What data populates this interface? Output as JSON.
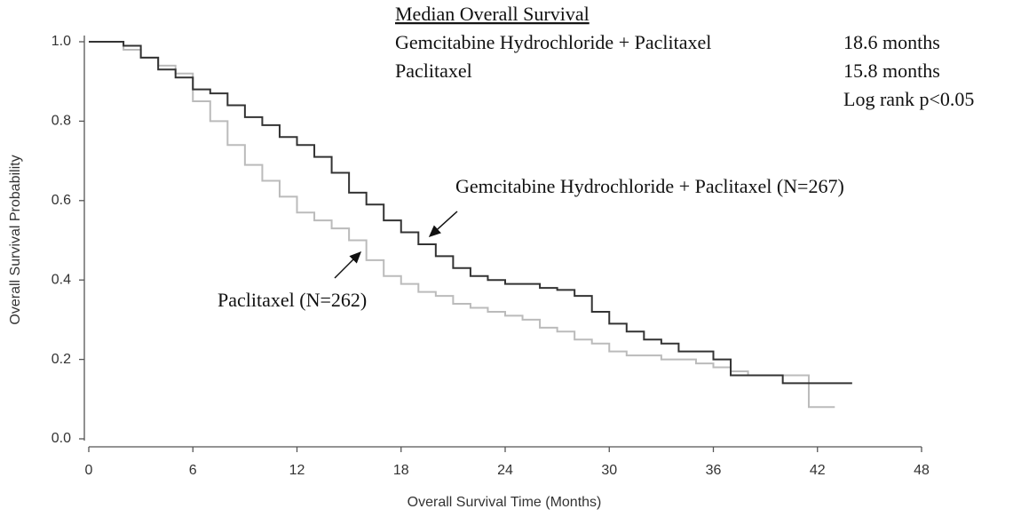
{
  "chart_data": {
    "type": "line",
    "step": "post",
    "x_label": "Overall Survival Time (Months)",
    "y_label": "Overall Survival Probability",
    "xlim": [
      0,
      48
    ],
    "ylim": [
      0,
      1
    ],
    "xticks": [
      0,
      6,
      12,
      18,
      24,
      30,
      36,
      42,
      48
    ],
    "yticks": [
      {
        "value": 0,
        "label": "0.0"
      },
      0.2,
      0.4,
      0.6,
      0.8,
      {
        "value": 1,
        "label": "1.0"
      }
    ],
    "grid": false,
    "series": [
      {
        "name": "Gemcitabine Hydrochloride + Paclitaxel (N=267)",
        "color": "#333333",
        "x": [
          0,
          1,
          2,
          3,
          4,
          5,
          6,
          7,
          8,
          9,
          10,
          11,
          12,
          13,
          14,
          15,
          16,
          17,
          18,
          19,
          20,
          21,
          22,
          23,
          24,
          25,
          26,
          27,
          28,
          29,
          30,
          31,
          32,
          33,
          34,
          36,
          37,
          40,
          44
        ],
        "values": [
          1.0,
          1.0,
          0.99,
          0.96,
          0.93,
          0.91,
          0.88,
          0.87,
          0.84,
          0.81,
          0.79,
          0.76,
          0.74,
          0.71,
          0.67,
          0.62,
          0.59,
          0.55,
          0.52,
          0.49,
          0.46,
          0.43,
          0.41,
          0.4,
          0.39,
          0.39,
          0.38,
          0.375,
          0.36,
          0.32,
          0.29,
          0.27,
          0.25,
          0.24,
          0.22,
          0.2,
          0.16,
          0.14,
          0.14
        ]
      },
      {
        "name": "Paclitaxel (N=262)",
        "color": "#bbbbbb",
        "x": [
          0,
          1,
          2,
          3,
          4,
          5,
          6,
          7,
          8,
          9,
          10,
          11,
          12,
          13,
          14,
          15,
          16,
          17,
          18,
          19,
          20,
          21,
          22,
          23,
          24,
          25,
          26,
          27,
          28,
          29,
          30,
          31,
          33,
          35,
          36,
          37,
          38,
          41.5,
          43
        ],
        "values": [
          1.0,
          1.0,
          0.98,
          0.96,
          0.94,
          0.92,
          0.85,
          0.8,
          0.74,
          0.69,
          0.65,
          0.61,
          0.57,
          0.55,
          0.53,
          0.5,
          0.45,
          0.41,
          0.39,
          0.37,
          0.36,
          0.34,
          0.33,
          0.32,
          0.31,
          0.3,
          0.28,
          0.27,
          0.25,
          0.24,
          0.22,
          0.21,
          0.2,
          0.19,
          0.18,
          0.17,
          0.16,
          0.08,
          0.08
        ]
      }
    ],
    "median_table": {
      "title": "Median Overall Survival",
      "rows": [
        [
          "Gemcitabine Hydrochloride + Paclitaxel",
          "18.6 months"
        ],
        [
          "Paclitaxel",
          "15.8 months"
        ]
      ],
      "note": "Log rank p<0.05"
    }
  }
}
